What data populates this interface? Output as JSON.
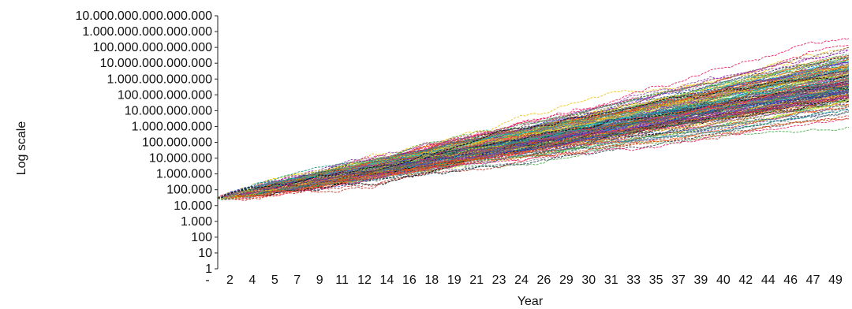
{
  "chart_data": {
    "type": "line",
    "title": "",
    "xlabel": "Year",
    "ylabel": "Log scale",
    "yscale": "log",
    "ylim": [
      1,
      10000000000000000
    ],
    "xlim": [
      0,
      50
    ],
    "grid": false,
    "legend": "none",
    "y_tick_labels": [
      "10.000.000.000.000.000",
      "1.000.000.000.000.000",
      "100.000.000.000.000",
      "10.000.000.000.000",
      "1.000.000.000.000",
      "100.000.000.000",
      "10.000.000.000",
      "1.000.000.000",
      "100.000.000",
      "10.000.000",
      "1.000.000",
      "100.000",
      "10.000",
      "1.000",
      "100",
      "10",
      "1"
    ],
    "x_tick_labels": [
      "-",
      "2",
      "4",
      "5",
      "7",
      "9",
      "11",
      "12",
      "14",
      "16",
      "18",
      "19",
      "21",
      "23",
      "24",
      "26",
      "29",
      "30",
      "31",
      "33",
      "35",
      "37",
      "39",
      "40",
      "42",
      "44",
      "46",
      "47",
      "49"
    ],
    "series_summary": {
      "count": 200,
      "start_value": 30000,
      "end_median": 1000000000000,
      "end_low": 10000000000,
      "end_high": 5000000000000000
    },
    "series_colors": [
      "#1f3fbf",
      "#c0392b",
      "#2e8b57",
      "#8e44ad",
      "#f1c40f",
      "#16a085",
      "#e67e22",
      "#2c3e50",
      "#d35400",
      "#7f8c8d",
      "#00bcd4",
      "#9c27b0",
      "#4caf50",
      "#ff5722",
      "#3f51b5",
      "#795548",
      "#e91e63",
      "#607d8b",
      "#cddc39",
      "#000000"
    ]
  }
}
